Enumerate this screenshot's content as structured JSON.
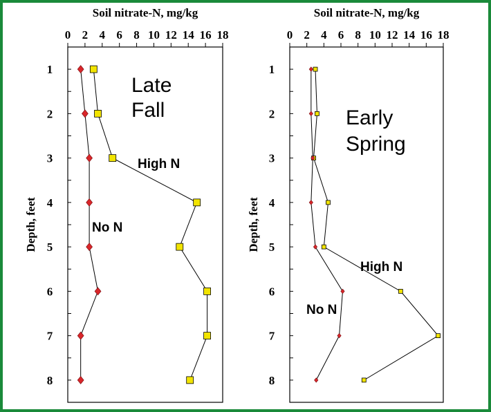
{
  "colors": {
    "frame_border": "#1a8a3a",
    "high_n_marker": "#f2e400",
    "no_n_marker": "#d9262a",
    "line": "#000000"
  },
  "chart_data": [
    {
      "type": "line",
      "xlabel": "Soil nitrate-N, mg/kg",
      "ylabel": "Depth, feet",
      "x_ticks": [
        "0",
        "2",
        "4",
        "6",
        "8",
        "10",
        "12",
        "14",
        "16",
        "18"
      ],
      "y_ticks": [
        "1",
        "2",
        "3",
        "4",
        "5",
        "6",
        "7",
        "8"
      ],
      "xlim": [
        0,
        18
      ],
      "ylim": [
        8.5,
        0.5
      ],
      "x_axis_position": "top",
      "grid": false,
      "annotations": [
        "Late",
        "Fall",
        "High N",
        "No N"
      ],
      "series": [
        {
          "name": "High N",
          "marker": "square",
          "points": [
            [
              3.0,
              1
            ],
            [
              3.5,
              2
            ],
            [
              5.2,
              3
            ],
            [
              15.0,
              4
            ],
            [
              13.0,
              5
            ],
            [
              16.2,
              6
            ],
            [
              16.2,
              7
            ],
            [
              14.2,
              8
            ]
          ]
        },
        {
          "name": "No N",
          "marker": "diamond",
          "points": [
            [
              1.5,
              1
            ],
            [
              2.0,
              2
            ],
            [
              2.5,
              3
            ],
            [
              2.5,
              4
            ],
            [
              2.5,
              5
            ],
            [
              3.5,
              6
            ],
            [
              1.5,
              7
            ],
            [
              1.5,
              8
            ]
          ]
        }
      ]
    },
    {
      "type": "line",
      "xlabel": "Soil nitrate-N, mg/kg",
      "ylabel": "Depth, feet",
      "x_ticks": [
        "0",
        "2",
        "4",
        "6",
        "8",
        "10",
        "12",
        "14",
        "16",
        "18"
      ],
      "y_ticks": [
        "1",
        "2",
        "3",
        "4",
        "5",
        "6",
        "7",
        "8"
      ],
      "xlim": [
        0,
        18
      ],
      "ylim": [
        8.5,
        0.5
      ],
      "x_axis_position": "top",
      "grid": false,
      "annotations": [
        "Early",
        "Spring",
        "High N",
        "No N"
      ],
      "series": [
        {
          "name": "High N",
          "marker": "square",
          "points": [
            [
              3.0,
              1
            ],
            [
              3.2,
              2
            ],
            [
              2.8,
              3
            ],
            [
              4.5,
              4
            ],
            [
              4.0,
              5
            ],
            [
              13.0,
              6
            ],
            [
              17.4,
              7
            ],
            [
              8.7,
              8
            ]
          ]
        },
        {
          "name": "No N",
          "marker": "diamond",
          "points": [
            [
              2.5,
              1
            ],
            [
              2.5,
              2
            ],
            [
              2.7,
              3
            ],
            [
              2.5,
              4
            ],
            [
              3.0,
              5
            ],
            [
              6.2,
              6
            ],
            [
              5.8,
              7
            ],
            [
              3.1,
              8
            ]
          ]
        }
      ]
    }
  ]
}
